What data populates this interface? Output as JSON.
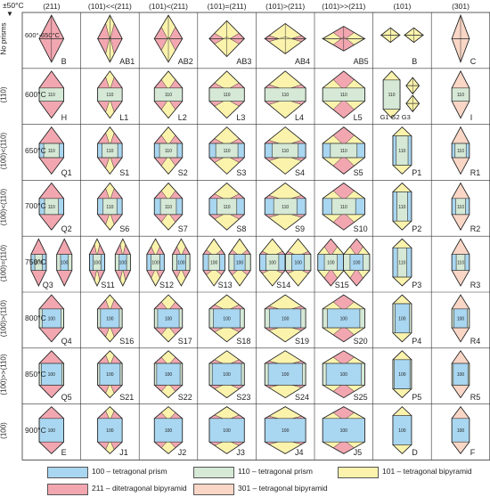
{
  "header": {
    "temp_tolerance": "±50°C",
    "columns": [
      "(211)",
      "(101)<<(211)",
      "(101)<(211)",
      "(101)=(211)",
      "(101)>(211)",
      "(101)>>(211)",
      "(101)",
      "(301)"
    ]
  },
  "rows": [
    {
      "temp": "600°-650°C",
      "plane": "No prisms",
      "labels": [
        "B",
        "AB1",
        "AB2",
        "AB3",
        "AB4",
        "AB5",
        "B",
        "C"
      ]
    },
    {
      "temp": "600°C",
      "plane": "(110)",
      "labels": [
        "H",
        "L1",
        "L2",
        "L3",
        "L4",
        "L5",
        "G1 G2 G3",
        "I"
      ]
    },
    {
      "temp": "650°C",
      "plane": "(100)<(110)",
      "labels": [
        "Q1",
        "S1",
        "S2",
        "S3",
        "S4",
        "S5",
        "P1",
        "R1"
      ]
    },
    {
      "temp": "700°C",
      "plane": "(100)<(110)",
      "labels": [
        "Q2",
        "S6",
        "S7",
        "S8",
        "S9",
        "S10",
        "P2",
        "R2"
      ]
    },
    {
      "temp": "750°C",
      "plane": "(100)=(110)",
      "labels": [
        "Q3",
        "S11",
        "S12",
        "S13",
        "S14",
        "S15",
        "P3",
        "R3"
      ]
    },
    {
      "temp": "800°C",
      "plane": "(100)>(110)",
      "labels": [
        "Q4",
        "S16",
        "S17",
        "S18",
        "S19",
        "S20",
        "P4",
        "R4"
      ]
    },
    {
      "temp": "850°C",
      "plane": "(100)>>(110)",
      "labels": [
        "Q5",
        "S21",
        "S22",
        "S23",
        "S24",
        "S25",
        "P5",
        "R5"
      ]
    },
    {
      "temp": "900°C",
      "plane": "(100)",
      "labels": [
        "E",
        "J1",
        "J2",
        "J3",
        "J4",
        "J5",
        "D",
        "F"
      ]
    }
  ],
  "face_label": "100",
  "face_label_110": "110",
  "legend": [
    {
      "text": "100 – tetragonal prism",
      "color": "#a9d6f0"
    },
    {
      "text": "110 – tetragonal prism",
      "color": "#d5e9d6"
    },
    {
      "text": "101 – tetragonal bipyramid",
      "color": "#fbf3ac"
    },
    {
      "text": "211 – ditetragonal bipyramid",
      "color": "#f2a7b0"
    },
    {
      "text": "301 – tetragonal bipyramid",
      "color": "#f9d6c6"
    }
  ]
}
